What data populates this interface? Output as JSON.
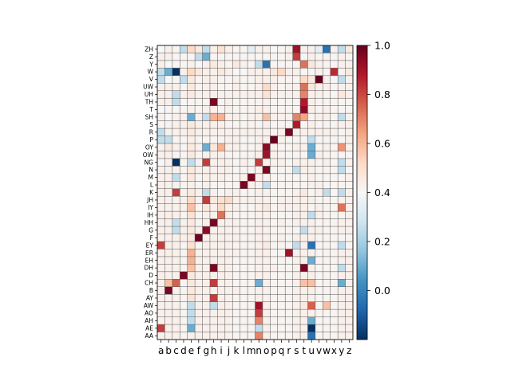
{
  "chart_data": {
    "type": "heatmap",
    "title": "",
    "xlabel": "",
    "ylabel": "",
    "x_categories": [
      "a",
      "b",
      "c",
      "d",
      "e",
      "f",
      "g",
      "h",
      "i",
      "j",
      "k",
      "l",
      "m",
      "n",
      "o",
      "p",
      "q",
      "r",
      "s",
      "t",
      "u",
      "v",
      "w",
      "x",
      "y",
      "z"
    ],
    "y_categories_top_to_bottom": [
      "ZH",
      "Z",
      "Y",
      "W",
      "V",
      "UW",
      "UH",
      "TH",
      "T",
      "SH",
      "S",
      "R",
      "P",
      "OY",
      "OW",
      "NG",
      "N",
      "M",
      "L",
      "K",
      "JH",
      "IY",
      "IH",
      "HH",
      "G",
      "F",
      "EY",
      "ER",
      "EH",
      "DH",
      "D",
      "CH",
      "B",
      "AY",
      "AW",
      "AO",
      "AH",
      "AE",
      "AA"
    ],
    "values": [
      [
        0,
        0.05,
        0.02,
        -0.05,
        0.2,
        0.1,
        -0.05,
        0.05,
        0.15,
        0.05,
        0.02,
        0.02,
        -0.02,
        0.05,
        0.05,
        0,
        0.02,
        0.05,
        0.85,
        0.05,
        0.05,
        -0.02,
        -0.15,
        0.05,
        -0.05,
        0.1
      ],
      [
        0.05,
        0.05,
        0.02,
        0.02,
        0.02,
        -0.05,
        -0.1,
        0.02,
        0.02,
        0.02,
        0.02,
        0.02,
        0.02,
        0.02,
        0.02,
        0.02,
        0.02,
        0.05,
        0.7,
        0.02,
        0.05,
        0.02,
        0.02,
        0.02,
        0.05,
        0.02
      ],
      [
        0.05,
        0,
        0.02,
        0.02,
        0.05,
        0,
        0.05,
        0.1,
        0.05,
        0.02,
        0.1,
        0.05,
        0.02,
        -0.05,
        -0.15,
        0.02,
        0.02,
        0.02,
        0.02,
        0.55,
        0.1,
        0.05,
        0.02,
        0.02,
        0.05,
        0.05
      ],
      [
        -0.05,
        -0.1,
        -0.2,
        0.05,
        0.2,
        0.1,
        0.05,
        0.05,
        0.1,
        0.05,
        0,
        0,
        0.05,
        0.05,
        0.05,
        0.1,
        0.2,
        0.05,
        0.05,
        0.02,
        0.02,
        0.05,
        0.02,
        0.75,
        0.02,
        0.1
      ],
      [
        -0.05,
        0,
        0.02,
        -0.05,
        0.1,
        0.02,
        0.05,
        0.05,
        0.02,
        0.02,
        0.05,
        0.02,
        0.02,
        0.05,
        0.05,
        0.05,
        0.02,
        0.02,
        0.02,
        0.2,
        0.1,
        1.0,
        0.05,
        0.02,
        -0.05,
        0.05
      ],
      [
        0.05,
        0.05,
        0.05,
        0.02,
        0.1,
        0.02,
        0.05,
        0.05,
        0.02,
        0.02,
        0.05,
        0.02,
        0.02,
        0.05,
        0.2,
        0.05,
        0.02,
        0.05,
        0.05,
        0.55,
        0.1,
        0.05,
        0.05,
        0.02,
        0.05,
        0.05
      ],
      [
        0.05,
        0.05,
        -0.05,
        0.05,
        0.1,
        0.05,
        0.05,
        0.05,
        0.05,
        0.05,
        0.05,
        0.05,
        0.05,
        0.05,
        0.15,
        0.05,
        0.05,
        0.05,
        0.05,
        0.5,
        0.05,
        0.05,
        0.02,
        0.02,
        0.1,
        0.05
      ],
      [
        0.05,
        0.05,
        -0.05,
        0.02,
        0.02,
        0.02,
        0.02,
        0.95,
        0.02,
        0.05,
        0.02,
        0.02,
        0.02,
        0.02,
        0.05,
        0.02,
        0.02,
        0.02,
        0.02,
        0.8,
        0.05,
        0.02,
        0.02,
        0.02,
        0.02,
        0.02
      ],
      [
        0,
        0.02,
        0.02,
        0.02,
        0.05,
        0.02,
        0.05,
        0.05,
        0.02,
        0.05,
        0.02,
        0.02,
        0.02,
        0.05,
        0.05,
        0.02,
        0.02,
        0.02,
        0.02,
        0.9,
        0.05,
        0.02,
        0.05,
        0.02,
        0.02,
        0.02
      ],
      [
        0.05,
        0,
        0.05,
        0.05,
        -0.1,
        0.05,
        -0.05,
        0.35,
        0.35,
        0.05,
        0.05,
        0.02,
        0.05,
        0.05,
        0.3,
        0.05,
        0.05,
        0.05,
        0.5,
        0.4,
        0.02,
        0.05,
        0.05,
        0.02,
        -0.05,
        0.05
      ],
      [
        0.02,
        0.02,
        0.05,
        0.05,
        0.1,
        0.05,
        0.05,
        0.05,
        0.05,
        0.02,
        0.02,
        0.02,
        0.02,
        0.02,
        0.05,
        0.02,
        0.02,
        0.02,
        0.8,
        0.02,
        0.05,
        0.02,
        0.02,
        0.02,
        0.05,
        0.05
      ],
      [
        -0.05,
        0.05,
        0.05,
        0.05,
        0.1,
        0.05,
        0.05,
        0.05,
        0.05,
        0.05,
        0.05,
        0.05,
        0.05,
        0.05,
        0.05,
        0.02,
        0.05,
        0.95,
        0.05,
        0.05,
        0.05,
        0.05,
        0.05,
        0.05,
        0.02,
        0.05
      ],
      [
        -0.05,
        -0.05,
        0.02,
        0.02,
        0.05,
        0.02,
        0.02,
        0.02,
        0.02,
        0.05,
        0.05,
        0.02,
        0.02,
        0.05,
        0.05,
        1.0,
        0.05,
        0.02,
        0.02,
        0.02,
        -0.05,
        0.02,
        0.02,
        0.02,
        0.02,
        0.05
      ],
      [
        0.05,
        0.1,
        0.05,
        0.02,
        0.1,
        0.05,
        -0.1,
        0.1,
        0.35,
        0.05,
        0.05,
        0.02,
        0.02,
        0.05,
        0.9,
        0.05,
        0.02,
        0.02,
        0.05,
        0.05,
        -0.1,
        0.02,
        0.05,
        0.02,
        0.45,
        0.05
      ],
      [
        0.05,
        0.05,
        0.02,
        0.02,
        0.1,
        0.02,
        0.05,
        0.05,
        0.05,
        0.02,
        0.02,
        0.02,
        0.02,
        0.05,
        0.85,
        0.05,
        0.02,
        0.02,
        0.02,
        0.02,
        -0.1,
        0.05,
        0.02,
        0.02,
        0.02,
        0.02
      ],
      [
        0,
        0.05,
        -0.2,
        0.02,
        -0.05,
        0.05,
        0.7,
        0.05,
        0.05,
        0.05,
        0.02,
        0.05,
        0.02,
        0.7,
        0.05,
        0.05,
        0.05,
        0.02,
        0.05,
        0.05,
        0.05,
        0.02,
        0.05,
        0.02,
        -0.05,
        0.05
      ],
      [
        0.05,
        0.05,
        0.05,
        0.02,
        0.1,
        0.05,
        0.05,
        0.05,
        0.05,
        0.05,
        0.02,
        0.02,
        0.02,
        0.05,
        0.95,
        0.02,
        0.02,
        0.02,
        -0.05,
        0.05,
        0.05,
        0.02,
        0.02,
        0.02,
        -0.05,
        0.02
      ],
      [
        0.05,
        0.05,
        -0.05,
        0.02,
        0.1,
        0.02,
        0.05,
        0.05,
        0.05,
        0.02,
        0.02,
        0.05,
        0.95,
        0.05,
        0.05,
        0.02,
        0.02,
        0.02,
        0.02,
        0.02,
        0.05,
        0.02,
        0.02,
        0.02,
        0.02,
        0.05
      ],
      [
        0.05,
        0.05,
        0.05,
        0.02,
        0.05,
        0.02,
        0.05,
        0.02,
        0.02,
        0.02,
        0.02,
        0.95,
        0.05,
        0.05,
        -0.05,
        0.02,
        0.02,
        0.02,
        0.02,
        0.02,
        0.05,
        0.05,
        0.02,
        0.02,
        0.02,
        0.02
      ],
      [
        0.05,
        0.05,
        0.7,
        0.05,
        0.1,
        0.05,
        -0.05,
        0.05,
        0.02,
        0.05,
        0.05,
        0.02,
        0.02,
        0.05,
        0.05,
        0.02,
        0.02,
        0.02,
        0.05,
        0.1,
        0.02,
        0.05,
        -0.05,
        0.02,
        -0.05,
        0.05
      ],
      [
        0.05,
        0.05,
        0.05,
        0.05,
        0.2,
        0.05,
        0.7,
        0.1,
        0.15,
        0.2,
        0.05,
        0.05,
        0.05,
        0.05,
        0.05,
        0.02,
        0.05,
        0.05,
        0.05,
        0.05,
        0.05,
        0.02,
        0.02,
        0.02,
        0.05,
        0.05
      ],
      [
        0.05,
        0.05,
        0.05,
        0.05,
        0.3,
        0.02,
        0.1,
        0.05,
        0.2,
        0.05,
        0.05,
        0.02,
        0.02,
        0.05,
        0.1,
        0.02,
        0.05,
        0.05,
        0.05,
        0.05,
        0.02,
        0.05,
        0.02,
        0.02,
        0.55,
        0.05
      ],
      [
        0.05,
        0.05,
        0.05,
        0.02,
        0.15,
        0.02,
        0.05,
        0.05,
        0.55,
        0.05,
        0.02,
        0.02,
        0.02,
        0.05,
        0.05,
        0.02,
        0.02,
        0.02,
        0.05,
        0.05,
        -0.05,
        0.05,
        0.02,
        0.02,
        0.02,
        0.05
      ],
      [
        0.05,
        0.05,
        -0.05,
        0.05,
        0.1,
        0.02,
        0.05,
        0.95,
        0.05,
        0.05,
        0.05,
        0.02,
        0.02,
        0.05,
        0.05,
        0.02,
        0.05,
        0.02,
        0.05,
        0.05,
        0.05,
        0.02,
        0.02,
        0.02,
        0.05,
        0.05
      ],
      [
        0.05,
        0.05,
        -0.05,
        0.05,
        0.1,
        0.05,
        0.9,
        0.05,
        0.05,
        0.05,
        0.05,
        0.02,
        0.02,
        0.05,
        0.05,
        0.02,
        0.02,
        0.02,
        0.02,
        -0.05,
        0.05,
        0.05,
        0.02,
        0.02,
        0.05,
        0.05
      ],
      [
        0.05,
        0.05,
        0.05,
        0.05,
        0.1,
        0.98,
        0.05,
        0.05,
        0.05,
        0.05,
        0.05,
        0.02,
        0.02,
        0.05,
        0.05,
        0.02,
        0.05,
        0.02,
        0.05,
        0.05,
        0.05,
        0.02,
        0.02,
        0.02,
        0.02,
        0.02
      ],
      [
        0.7,
        0.05,
        0.05,
        0.02,
        0.15,
        0.02,
        0.05,
        0.05,
        0.05,
        0.05,
        0.02,
        0.02,
        0.02,
        0.05,
        0.1,
        0.02,
        0.02,
        0.02,
        -0.05,
        0.05,
        -0.15,
        0.02,
        0.02,
        0.02,
        -0.05,
        0.02
      ],
      [
        0.05,
        0.05,
        0.05,
        0.02,
        0.35,
        0.05,
        0.05,
        0.05,
        0.05,
        0.05,
        0.05,
        0.02,
        0.02,
        0.05,
        0.05,
        0.02,
        0.02,
        0.85,
        0.05,
        0.05,
        0.05,
        0.02,
        0.02,
        0.02,
        0.05,
        0.05
      ],
      [
        0.05,
        0.05,
        0.05,
        0.02,
        0.35,
        0.05,
        0.05,
        0.05,
        0.05,
        0.05,
        0.02,
        0.02,
        0.02,
        0.05,
        0.05,
        0.02,
        0.02,
        0.02,
        0.05,
        0.05,
        -0.1,
        0.02,
        0.02,
        0.02,
        0.05,
        0.05
      ],
      [
        0.05,
        0.05,
        0.05,
        0.02,
        0.3,
        0.05,
        0.05,
        0.95,
        0.05,
        0.05,
        0.02,
        0.02,
        0.02,
        0.05,
        0.05,
        0.05,
        0.02,
        0.02,
        0.05,
        0.95,
        0.05,
        0.02,
        0.02,
        0.02,
        -0.05,
        0.05
      ],
      [
        0.05,
        0.05,
        0.05,
        0.95,
        0.1,
        0.05,
        0.05,
        0.05,
        0.05,
        0.05,
        0.02,
        0.02,
        0.02,
        0.05,
        0.05,
        0.02,
        0.02,
        0.02,
        0.05,
        0.05,
        0.05,
        0.02,
        0.02,
        0.02,
        0.05,
        0.05
      ],
      [
        0.05,
        0.3,
        0.6,
        0.02,
        0.1,
        0.05,
        0.05,
        0.7,
        0.05,
        0.05,
        0.02,
        0.02,
        0.02,
        -0.1,
        0.05,
        0.02,
        0.02,
        0.02,
        0.05,
        0.3,
        0.3,
        0.02,
        0.02,
        0.02,
        -0.1,
        0.05
      ],
      [
        0.05,
        0.95,
        0.05,
        0.02,
        0.1,
        0.05,
        0.05,
        0.05,
        0.05,
        0.05,
        0.05,
        0.02,
        0.02,
        0.05,
        0.05,
        0.02,
        0.02,
        0.02,
        0.05,
        0.05,
        0.05,
        0.02,
        0.02,
        0.02,
        0.05,
        0.05
      ],
      [
        0.05,
        0.05,
        0.05,
        0.02,
        0.15,
        0.05,
        0.05,
        0.7,
        0.05,
        0.05,
        0.02,
        0.02,
        0.02,
        0.05,
        0.05,
        0.02,
        0.02,
        0.02,
        0.05,
        0.05,
        0.05,
        0.02,
        0.02,
        0.02,
        0.05,
        0.05
      ],
      [
        0.05,
        0.05,
        0.05,
        0.02,
        -0.05,
        0.05,
        0.05,
        -0.05,
        0.05,
        0.05,
        0.02,
        0.02,
        0.02,
        0.85,
        0.05,
        0.02,
        0.02,
        0.02,
        0.05,
        0.1,
        0.6,
        0.02,
        0.3,
        0.02,
        0.05,
        0.05
      ],
      [
        0.05,
        0.05,
        0.05,
        0.02,
        -0.05,
        0.05,
        0.05,
        0.05,
        0.05,
        0.05,
        0.02,
        0.02,
        0.02,
        0.7,
        0.05,
        0.02,
        0.02,
        0.02,
        0.05,
        0.05,
        0.05,
        0.02,
        0.02,
        0.02,
        0.05,
        0.05
      ],
      [
        0.05,
        0.05,
        0.05,
        0.02,
        -0.05,
        0.05,
        0.05,
        0.05,
        0.05,
        0.05,
        0.02,
        0.02,
        0.02,
        0.5,
        0.05,
        0.02,
        0.02,
        0.02,
        0.05,
        0.05,
        -0.1,
        0.02,
        0.02,
        0.02,
        0.05,
        0.05
      ],
      [
        0.7,
        0.05,
        0.05,
        0.02,
        -0.1,
        0.05,
        0.05,
        0.05,
        0.05,
        0.05,
        0.02,
        0.02,
        0.02,
        -0.05,
        0.05,
        0.02,
        0.02,
        0.02,
        0.05,
        0.05,
        -0.2,
        0.02,
        0.02,
        0.02,
        0.05,
        0.05
      ],
      [
        0.05,
        0.05,
        0.05,
        0.02,
        0.05,
        0.05,
        0.05,
        0.05,
        0.05,
        0.05,
        0.02,
        0.02,
        0.02,
        0.5,
        0.05,
        0.02,
        0.02,
        0.02,
        0.05,
        0.05,
        -0.15,
        0.02,
        0.02,
        0.02,
        0.05,
        0.05
      ]
    ],
    "colorbar": {
      "cmap": "RdBu_r",
      "vmin": -0.2,
      "vmax": 1.0,
      "ticks": [
        1.0,
        0.8,
        0.6,
        0.4,
        0.2,
        0.0
      ],
      "tick_labels": [
        "1.0",
        "0.8",
        "0.6",
        "0.4",
        "0.2",
        "0.0"
      ]
    },
    "grid": true
  }
}
